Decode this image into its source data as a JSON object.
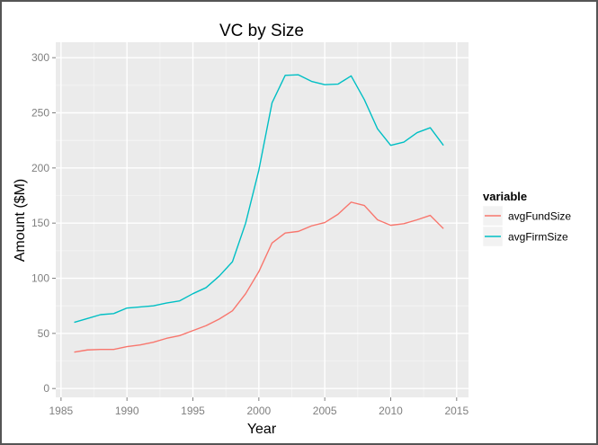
{
  "chart_data": {
    "type": "line",
    "title": "VC by Size",
    "xlabel": "Year",
    "ylabel": "Amount ($M)",
    "xlim": [
      1984.6,
      2015.9
    ],
    "ylim": [
      -8,
      314
    ],
    "x_ticks": [
      1985,
      1990,
      1995,
      2000,
      2005,
      2010,
      2015
    ],
    "y_ticks": [
      0,
      50,
      100,
      150,
      200,
      250,
      300
    ],
    "grid": true,
    "legend": {
      "title": "variable",
      "placement": "right"
    },
    "x": [
      1986,
      1987,
      1988,
      1989,
      1990,
      1991,
      1992,
      1993,
      1994,
      1995,
      1996,
      1997,
      1998,
      1999,
      2000,
      2001,
      2002,
      2003,
      2004,
      2005,
      2006,
      2007,
      2008,
      2009,
      2010,
      2011,
      2012,
      2013,
      2014
    ],
    "series": [
      {
        "name": "avgFundSize",
        "color": "#F8766D",
        "values": [
          33,
          35,
          35.5,
          35.5,
          38,
          39.5,
          42,
          45.5,
          48,
          52.5,
          57,
          63,
          70.5,
          86,
          106,
          132,
          141,
          142.5,
          147.5,
          150.5,
          158,
          169,
          166,
          153,
          148,
          149.5,
          153,
          157,
          145
        ]
      },
      {
        "name": "avgFirmSize",
        "color": "#00BFC4",
        "values": [
          60,
          63.5,
          67,
          68,
          73,
          74,
          75,
          77.5,
          79.5,
          86,
          91.5,
          102,
          115,
          150,
          198,
          259,
          284,
          284.5,
          278.5,
          275.5,
          276,
          283.5,
          262,
          235.5,
          220.5,
          223.5,
          232,
          236.5,
          220.5
        ]
      }
    ]
  }
}
